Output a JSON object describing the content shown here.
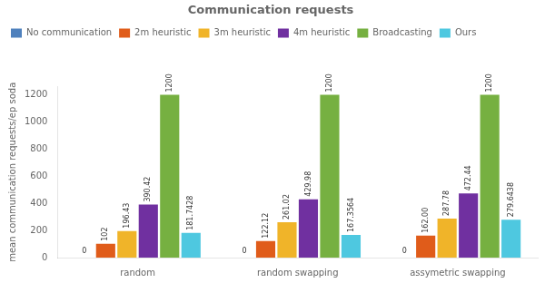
{
  "chart_data": {
    "type": "bar",
    "title": "Communication requests",
    "ylabel": "mean communication requests/ep soda",
    "categories": [
      "random",
      "random swapping",
      "assymetric swapping"
    ],
    "series": [
      {
        "name": "No communication",
        "color": "#4f81bd",
        "values": [
          0,
          0,
          0
        ]
      },
      {
        "name": "2m heuristic",
        "color": "#e05c1a",
        "values": [
          102,
          122.12,
          162.0
        ],
        "value_labels": [
          "102",
          "122.12",
          "162.00"
        ]
      },
      {
        "name": "3m heuristic",
        "color": "#f0b429",
        "values": [
          196.43,
          261.02,
          287.78
        ]
      },
      {
        "name": "4m heuristic",
        "color": "#7030a0",
        "values": [
          390.42,
          429.98,
          472.44
        ]
      },
      {
        "name": "Broadcasting",
        "color": "#76b041",
        "values": [
          1200,
          1200,
          1200
        ]
      },
      {
        "name": "Ours",
        "color": "#4ec8e0",
        "values": [
          181.7428,
          167.3564,
          279.6438
        ]
      }
    ],
    "ylim": [
      0,
      1260
    ],
    "yticks": [
      0,
      200,
      400,
      600,
      800,
      1000,
      1200
    ],
    "grid": false,
    "legend": "upper left",
    "data_labels": true
  }
}
